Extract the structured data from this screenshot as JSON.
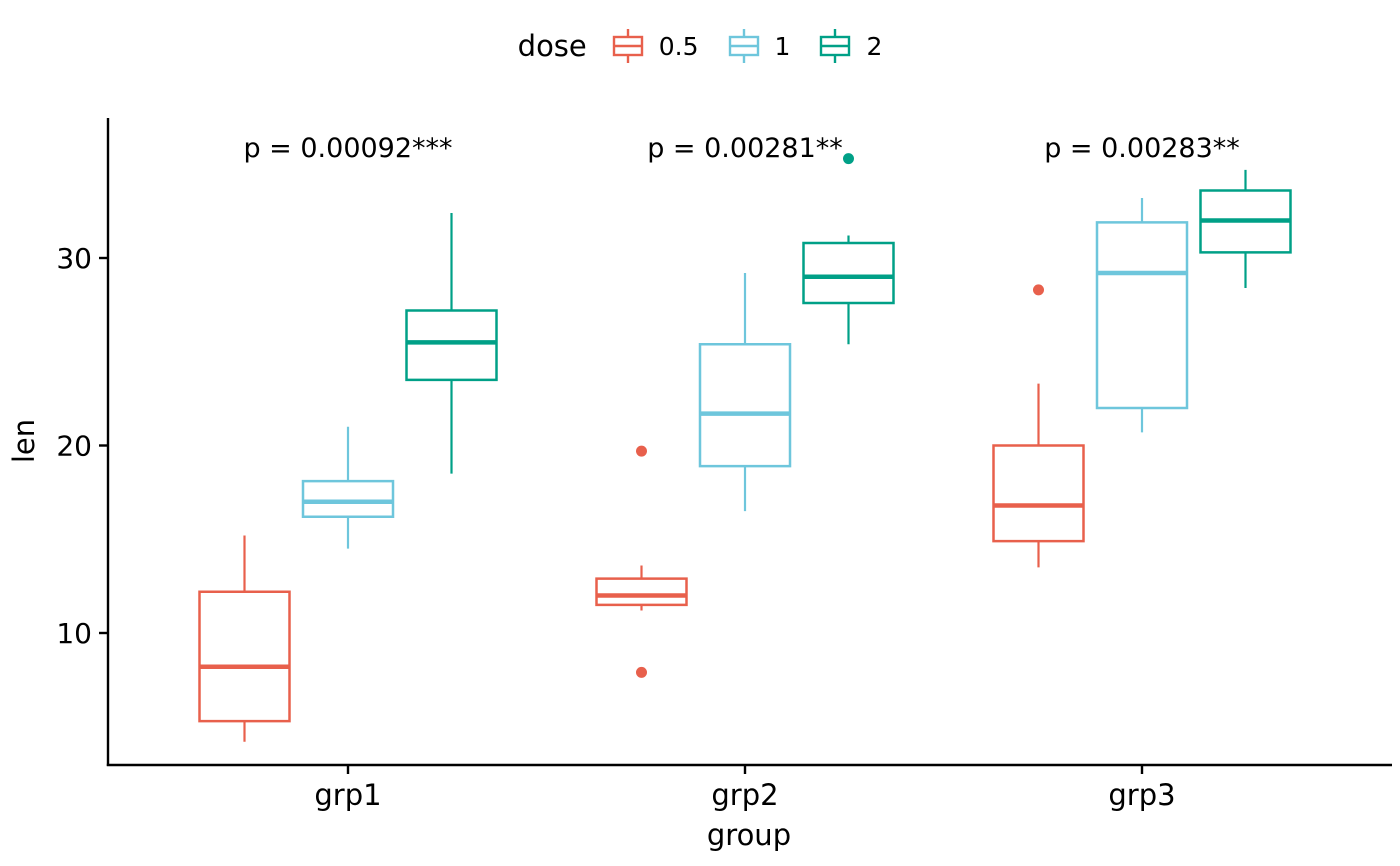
{
  "figure": {
    "background": "#FFFFFF",
    "axis_color": "#000000",
    "text_color": "#000000"
  },
  "legend": {
    "title": "dose",
    "items": [
      {
        "label": "0.5",
        "color": "#E8604C"
      },
      {
        "label": "1",
        "color": "#6EC6DC"
      },
      {
        "label": "2",
        "color": "#00A087"
      }
    ]
  },
  "chart_data": {
    "type": "boxplot",
    "title": "",
    "xlabel": "group",
    "ylabel": "len",
    "categories": [
      "grp1",
      "grp2",
      "grp3"
    ],
    "yticks": [
      10,
      20,
      30
    ],
    "ylim": [
      3,
      37.4
    ],
    "legend_title": "dose",
    "legend_position": "top",
    "grid": false,
    "annotations": [
      {
        "group": "grp1",
        "text": "p = 0.00092***"
      },
      {
        "group": "grp2",
        "text": "p = 0.00281**"
      },
      {
        "group": "grp3",
        "text": "p = 0.00283**"
      }
    ],
    "series": [
      {
        "name": "0.5",
        "color": "#E8604C",
        "boxes": [
          {
            "group": "grp1",
            "min": 4.2,
            "q1": 5.3,
            "median": 8.2,
            "q3": 12.2,
            "max": 15.2,
            "outliers": []
          },
          {
            "group": "grp2",
            "min": 11.2,
            "q1": 11.5,
            "median": 12.0,
            "q3": 12.9,
            "max": 13.6,
            "outliers": [
              19.7,
              7.9
            ]
          },
          {
            "group": "grp3",
            "min": 13.5,
            "q1": 14.9,
            "median": 16.8,
            "q3": 20.0,
            "max": 23.3,
            "outliers": [
              28.3
            ]
          }
        ]
      },
      {
        "name": "1",
        "color": "#6EC6DC",
        "boxes": [
          {
            "group": "grp1",
            "min": 14.5,
            "q1": 16.2,
            "median": 17.0,
            "q3": 18.1,
            "max": 21.0,
            "outliers": []
          },
          {
            "group": "grp2",
            "min": 16.5,
            "q1": 18.9,
            "median": 21.7,
            "q3": 25.4,
            "max": 29.2,
            "outliers": []
          },
          {
            "group": "grp3",
            "min": 20.7,
            "q1": 22.0,
            "median": 29.2,
            "q3": 31.9,
            "max": 33.2,
            "outliers": []
          }
        ]
      },
      {
        "name": "2",
        "color": "#00A087",
        "boxes": [
          {
            "group": "grp1",
            "min": 18.5,
            "q1": 23.5,
            "median": 25.5,
            "q3": 27.2,
            "max": 32.4,
            "outliers": []
          },
          {
            "group": "grp2",
            "min": 25.4,
            "q1": 27.6,
            "median": 29.0,
            "q3": 30.8,
            "max": 31.2,
            "outliers": [
              35.3
            ]
          },
          {
            "group": "grp3",
            "min": 28.4,
            "q1": 30.3,
            "median": 32.0,
            "q3": 33.6,
            "max": 34.7,
            "outliers": []
          }
        ]
      }
    ]
  }
}
